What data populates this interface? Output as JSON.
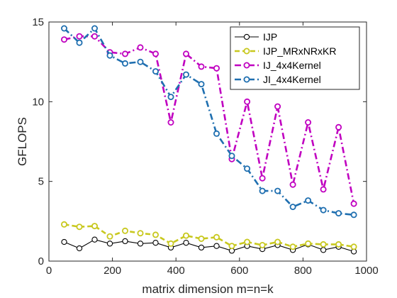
{
  "chart_data": {
    "type": "line",
    "xlabel": "matrix dimension m=n=k",
    "ylabel": "GFLOPS",
    "xlim": [
      0,
      1000
    ],
    "ylim": [
      0,
      15
    ],
    "xticks": [
      0,
      200,
      400,
      600,
      800,
      1000
    ],
    "yticks": [
      0,
      5,
      10,
      15
    ],
    "grid": false,
    "legend_position": "top-right",
    "x": [
      48,
      96,
      144,
      192,
      240,
      288,
      336,
      384,
      432,
      480,
      528,
      576,
      624,
      672,
      720,
      768,
      816,
      864,
      912,
      960
    ],
    "series": [
      {
        "name": "IJP",
        "color": "#000000",
        "dash": "solid",
        "values": [
          1.2,
          0.8,
          1.35,
          1.1,
          1.25,
          1.1,
          1.15,
          0.85,
          1.15,
          0.85,
          0.95,
          0.65,
          0.95,
          0.75,
          1.0,
          0.7,
          1.05,
          0.7,
          0.9,
          0.6
        ]
      },
      {
        "name": "IJP_MRxNRxKR",
        "color": "#c8c81e",
        "dash": "dashed",
        "values": [
          2.3,
          2.15,
          2.2,
          1.55,
          1.9,
          1.75,
          1.65,
          1.1,
          1.6,
          1.4,
          1.5,
          0.95,
          1.2,
          1.0,
          1.2,
          0.9,
          1.1,
          1.05,
          1.05,
          0.9
        ]
      },
      {
        "name": "IJ_4x4Kernel",
        "color": "#c000c0",
        "dash": "dashdot",
        "values": [
          13.9,
          14.1,
          14.1,
          13.1,
          13.0,
          13.4,
          13.0,
          8.7,
          13.0,
          12.2,
          12.1,
          6.4,
          10.0,
          5.2,
          9.7,
          4.8,
          8.7,
          4.5,
          8.4,
          3.6
        ]
      },
      {
        "name": "JI_4x4Kernel",
        "color": "#1f6fb0",
        "dash": "dashdot",
        "values": [
          14.6,
          13.7,
          14.6,
          12.9,
          12.4,
          12.5,
          11.9,
          10.3,
          11.7,
          11.1,
          8.0,
          6.6,
          5.8,
          4.4,
          4.4,
          3.4,
          3.8,
          3.2,
          3.0,
          2.9
        ]
      }
    ]
  }
}
